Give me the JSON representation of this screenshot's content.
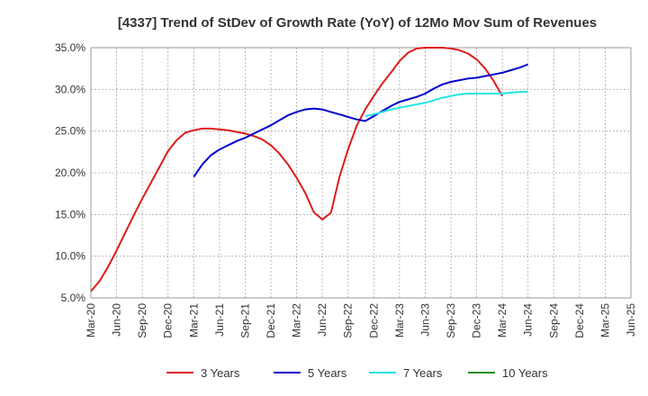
{
  "chart_data": {
    "type": "line",
    "title": "[4337]  Trend of StDev of Growth Rate (YoY) of 12Mo Mov Sum of Revenues",
    "xlabel": "",
    "ylabel": "",
    "ylim": [
      5.0,
      35.0
    ],
    "y_ticks": [
      "5.0%",
      "10.0%",
      "15.0%",
      "20.0%",
      "25.0%",
      "30.0%",
      "35.0%"
    ],
    "x_ticks": [
      "Mar-20",
      "Jun-20",
      "Sep-20",
      "Dec-20",
      "Mar-21",
      "Jun-21",
      "Sep-21",
      "Dec-21",
      "Mar-22",
      "Jun-22",
      "Sep-22",
      "Dec-22",
      "Mar-23",
      "Jun-23",
      "Sep-23",
      "Dec-23",
      "Mar-24",
      "Jun-24",
      "Sep-24",
      "Dec-24",
      "Mar-25",
      "Jun-25"
    ],
    "grid": true,
    "legend_position": "bottom",
    "series": [
      {
        "name": "3 Years",
        "color": "#dd1c1c",
        "points": [
          [
            0,
            5.8
          ],
          [
            1,
            7.0
          ],
          [
            2,
            8.7
          ],
          [
            3,
            10.7
          ],
          [
            4,
            12.8
          ],
          [
            5,
            14.9
          ],
          [
            6,
            16.9
          ],
          [
            7,
            18.8
          ],
          [
            8,
            20.7
          ],
          [
            9,
            22.6
          ],
          [
            10,
            23.9
          ],
          [
            11,
            24.8
          ],
          [
            12,
            25.1
          ],
          [
            13,
            25.3
          ],
          [
            14,
            25.3
          ],
          [
            15,
            25.2
          ],
          [
            16,
            25.1
          ],
          [
            17,
            24.9
          ],
          [
            18,
            24.7
          ],
          [
            19,
            24.4
          ],
          [
            20,
            24.0
          ],
          [
            21,
            23.3
          ],
          [
            22,
            22.3
          ],
          [
            23,
            21.0
          ],
          [
            24,
            19.4
          ],
          [
            25,
            17.6
          ],
          [
            26,
            15.3
          ],
          [
            27,
            14.4
          ],
          [
            28,
            15.2
          ],
          [
            29,
            19.5
          ],
          [
            30,
            22.8
          ],
          [
            31,
            25.6
          ],
          [
            32,
            27.6
          ],
          [
            33,
            29.2
          ],
          [
            34,
            30.7
          ],
          [
            35,
            32.0
          ],
          [
            36,
            33.4
          ],
          [
            37,
            34.4
          ],
          [
            38,
            34.9
          ],
          [
            39,
            35.0
          ],
          [
            40,
            35.0
          ],
          [
            41,
            35.0
          ],
          [
            42,
            34.9
          ],
          [
            43,
            34.7
          ],
          [
            44,
            34.3
          ],
          [
            45,
            33.6
          ],
          [
            46,
            32.5
          ],
          [
            47,
            31.0
          ],
          [
            48,
            29.2
          ]
        ]
      },
      {
        "name": "5 Years",
        "color": "#0000cc",
        "points": [
          [
            12,
            19.5
          ],
          [
            13,
            21.0
          ],
          [
            14,
            22.1
          ],
          [
            15,
            22.8
          ],
          [
            16,
            23.3
          ],
          [
            17,
            23.8
          ],
          [
            18,
            24.2
          ],
          [
            19,
            24.7
          ],
          [
            20,
            25.2
          ],
          [
            21,
            25.7
          ],
          [
            22,
            26.3
          ],
          [
            23,
            26.9
          ],
          [
            24,
            27.3
          ],
          [
            25,
            27.6
          ],
          [
            26,
            27.7
          ],
          [
            27,
            27.6
          ],
          [
            28,
            27.3
          ],
          [
            29,
            27.0
          ],
          [
            30,
            26.7
          ],
          [
            31,
            26.4
          ],
          [
            32,
            26.2
          ],
          [
            33,
            26.8
          ],
          [
            34,
            27.4
          ],
          [
            35,
            28.0
          ],
          [
            36,
            28.5
          ],
          [
            37,
            28.8
          ],
          [
            38,
            29.1
          ],
          [
            39,
            29.5
          ],
          [
            40,
            30.1
          ],
          [
            41,
            30.6
          ],
          [
            42,
            30.9
          ],
          [
            43,
            31.1
          ],
          [
            44,
            31.3
          ],
          [
            45,
            31.4
          ],
          [
            46,
            31.6
          ],
          [
            47,
            31.8
          ],
          [
            48,
            32.0
          ],
          [
            49,
            32.3
          ],
          [
            50,
            32.6
          ],
          [
            51,
            33.0
          ]
        ]
      },
      {
        "name": "7 Years",
        "color": "#22e5e5",
        "points": [
          [
            32,
            26.8
          ],
          [
            33,
            27.0
          ],
          [
            34,
            27.3
          ],
          [
            35,
            27.6
          ],
          [
            36,
            27.8
          ],
          [
            37,
            28.0
          ],
          [
            38,
            28.2
          ],
          [
            39,
            28.4
          ],
          [
            40,
            28.7
          ],
          [
            41,
            29.0
          ],
          [
            42,
            29.2
          ],
          [
            43,
            29.4
          ],
          [
            44,
            29.5
          ],
          [
            45,
            29.5
          ],
          [
            46,
            29.5
          ],
          [
            47,
            29.5
          ],
          [
            48,
            29.5
          ],
          [
            49,
            29.6
          ],
          [
            50,
            29.7
          ],
          [
            51,
            29.7
          ]
        ]
      },
      {
        "name": "10 Years",
        "color": "#228b22",
        "points": []
      }
    ]
  }
}
